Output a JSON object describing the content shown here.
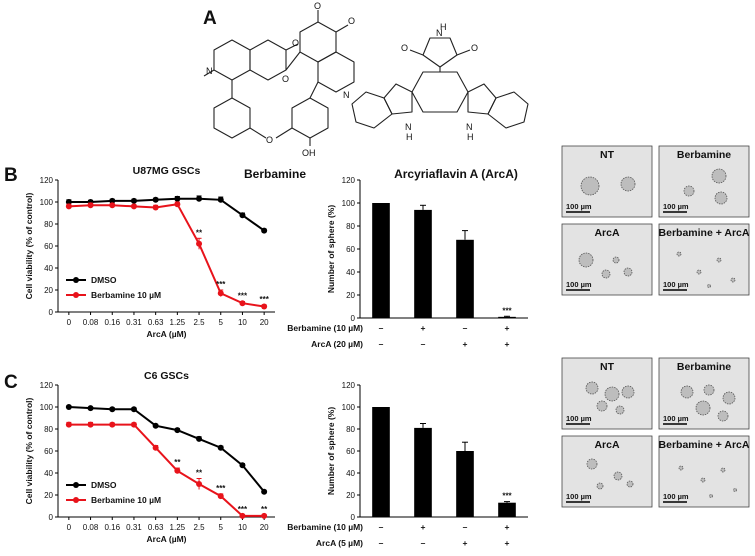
{
  "panel_labels": {
    "A": "A",
    "B": "B",
    "C": "C"
  },
  "molecules": {
    "left_name": "Berbamine",
    "right_name": "Arcyriaflavin A (ArcA)",
    "atoms_left": {
      "N": "N",
      "O": "O",
      "OH": "OH"
    },
    "atoms_right": {
      "O": "O",
      "N": "N",
      "H": "H"
    }
  },
  "micrographs": {
    "labels": [
      "NT",
      "Berbamine",
      "ArcA",
      "Berbamine + ArcA"
    ],
    "scale_label": "100 µm"
  },
  "chart_data": [
    {
      "id": "B-line",
      "type": "line",
      "title": "U87MG GSCs",
      "xlabel": "ArcA (µM)",
      "ylabel": "Cell viability (% of control)",
      "categories": [
        "0",
        "0.08",
        "0.16",
        "0.31",
        "0.63",
        "1.25",
        "2.5",
        "5",
        "10",
        "20"
      ],
      "ylim": [
        0,
        120
      ],
      "yticks": [
        0,
        20,
        40,
        60,
        80,
        100,
        120
      ],
      "legend_position": "bottom-left",
      "series": [
        {
          "name": "DMSO",
          "color": "#000000",
          "values": [
            100,
            100,
            101,
            101,
            102,
            103,
            103,
            102,
            88,
            74
          ],
          "errors": [
            2,
            1.5,
            1.5,
            1.5,
            1.5,
            2,
            2.5,
            2.5,
            2,
            1.5
          ]
        },
        {
          "name": "Berbamine 10 µM",
          "color": "#e8131b",
          "values": [
            96,
            97,
            97,
            96,
            95,
            98,
            62,
            17,
            8,
            5
          ],
          "errors": [
            2,
            2,
            1.5,
            1.5,
            2,
            2,
            5,
            3,
            1.5,
            1.5
          ]
        }
      ],
      "annotations": [
        {
          "index": 6,
          "text": "**"
        },
        {
          "index": 7,
          "text": "***"
        },
        {
          "index": 8,
          "text": "***"
        },
        {
          "index": 9,
          "text": "***"
        }
      ]
    },
    {
      "id": "B-bar",
      "type": "bar",
      "ylabel": "Number of sphere (%)",
      "ylim": [
        0,
        120
      ],
      "yticks": [
        0,
        20,
        40,
        60,
        80,
        100,
        120
      ],
      "values": [
        100,
        94,
        68,
        1
      ],
      "errors": [
        0,
        4,
        8,
        0.5
      ],
      "color": "#000000",
      "row_labels": [
        "Berbamine (10 µM)",
        "ArcA (20 µM)"
      ],
      "row_signs": [
        [
          "–",
          "+",
          "–",
          "+"
        ],
        [
          "–",
          "–",
          "+",
          "+"
        ]
      ],
      "annotations": [
        {
          "index": 3,
          "text": "***"
        }
      ]
    },
    {
      "id": "C-line",
      "type": "line",
      "title": "C6 GSCs",
      "xlabel": "ArcA (µM)",
      "ylabel": "Cell viability (% of control)",
      "categories": [
        "0",
        "0.08",
        "0.16",
        "0.31",
        "0.63",
        "1.25",
        "2.5",
        "5",
        "10",
        "20"
      ],
      "ylim": [
        0,
        120
      ],
      "yticks": [
        0,
        20,
        40,
        60,
        80,
        100,
        120
      ],
      "legend_position": "bottom-left",
      "series": [
        {
          "name": "DMSO",
          "color": "#000000",
          "values": [
            100,
            99,
            98,
            98,
            83,
            79,
            71,
            63,
            47,
            23
          ],
          "errors": [
            1,
            1,
            1,
            1,
            1,
            1.5,
            2,
            1.5,
            1.5,
            1
          ]
        },
        {
          "name": "Berbamine 10 µM",
          "color": "#e8131b",
          "values": [
            84,
            84,
            84,
            84,
            63,
            42,
            30,
            19,
            1,
            1
          ],
          "errors": [
            2,
            2,
            1.5,
            1.5,
            2,
            2.5,
            5,
            2,
            1,
            1
          ]
        }
      ],
      "annotations": [
        {
          "index": 5,
          "text": "**"
        },
        {
          "index": 6,
          "text": "**"
        },
        {
          "index": 7,
          "text": "***"
        },
        {
          "index": 8,
          "text": "***"
        },
        {
          "index": 9,
          "text": "**"
        }
      ]
    },
    {
      "id": "C-bar",
      "type": "bar",
      "ylabel": "Number of sphere (%)",
      "ylim": [
        0,
        120
      ],
      "yticks": [
        0,
        20,
        40,
        60,
        80,
        100,
        120
      ],
      "values": [
        100,
        81,
        60,
        13
      ],
      "errors": [
        0,
        4,
        8,
        1
      ],
      "color": "#000000",
      "row_labels": [
        "Berbamine (10 µM)",
        "ArcA (5 µM)"
      ],
      "row_signs": [
        [
          "–",
          "+",
          "–",
          "+"
        ],
        [
          "–",
          "–",
          "+",
          "+"
        ]
      ],
      "annotations": [
        {
          "index": 3,
          "text": "***"
        }
      ]
    }
  ]
}
